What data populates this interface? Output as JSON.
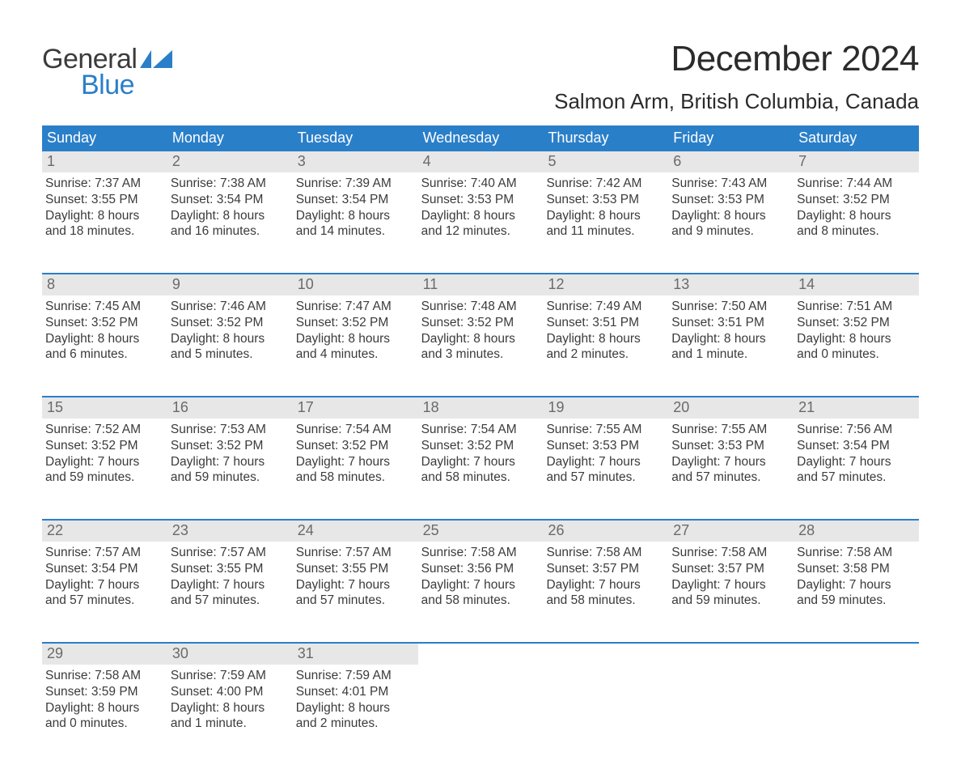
{
  "brand": {
    "word1": "General",
    "word2": "Blue",
    "flag_color": "#2a7fc9"
  },
  "header": {
    "month_title": "December 2024",
    "location": "Salmon Arm, British Columbia, Canada"
  },
  "colors": {
    "header_bg": "#2a7fc9",
    "header_text": "#ffffff",
    "daynum_bg": "#e7e7e7",
    "daynum_text": "#6a6a6a",
    "body_text": "#3b3b3b",
    "rule": "#2a7fc9",
    "page_bg": "#ffffff"
  },
  "day_headers": [
    "Sunday",
    "Monday",
    "Tuesday",
    "Wednesday",
    "Thursday",
    "Friday",
    "Saturday"
  ],
  "weeks": [
    [
      {
        "n": "1",
        "sunrise": "Sunrise: 7:37 AM",
        "sunset": "Sunset: 3:55 PM",
        "d1": "Daylight: 8 hours",
        "d2": "and 18 minutes."
      },
      {
        "n": "2",
        "sunrise": "Sunrise: 7:38 AM",
        "sunset": "Sunset: 3:54 PM",
        "d1": "Daylight: 8 hours",
        "d2": "and 16 minutes."
      },
      {
        "n": "3",
        "sunrise": "Sunrise: 7:39 AM",
        "sunset": "Sunset: 3:54 PM",
        "d1": "Daylight: 8 hours",
        "d2": "and 14 minutes."
      },
      {
        "n": "4",
        "sunrise": "Sunrise: 7:40 AM",
        "sunset": "Sunset: 3:53 PM",
        "d1": "Daylight: 8 hours",
        "d2": "and 12 minutes."
      },
      {
        "n": "5",
        "sunrise": "Sunrise: 7:42 AM",
        "sunset": "Sunset: 3:53 PM",
        "d1": "Daylight: 8 hours",
        "d2": "and 11 minutes."
      },
      {
        "n": "6",
        "sunrise": "Sunrise: 7:43 AM",
        "sunset": "Sunset: 3:53 PM",
        "d1": "Daylight: 8 hours",
        "d2": "and 9 minutes."
      },
      {
        "n": "7",
        "sunrise": "Sunrise: 7:44 AM",
        "sunset": "Sunset: 3:52 PM",
        "d1": "Daylight: 8 hours",
        "d2": "and 8 minutes."
      }
    ],
    [
      {
        "n": "8",
        "sunrise": "Sunrise: 7:45 AM",
        "sunset": "Sunset: 3:52 PM",
        "d1": "Daylight: 8 hours",
        "d2": "and 6 minutes."
      },
      {
        "n": "9",
        "sunrise": "Sunrise: 7:46 AM",
        "sunset": "Sunset: 3:52 PM",
        "d1": "Daylight: 8 hours",
        "d2": "and 5 minutes."
      },
      {
        "n": "10",
        "sunrise": "Sunrise: 7:47 AM",
        "sunset": "Sunset: 3:52 PM",
        "d1": "Daylight: 8 hours",
        "d2": "and 4 minutes."
      },
      {
        "n": "11",
        "sunrise": "Sunrise: 7:48 AM",
        "sunset": "Sunset: 3:52 PM",
        "d1": "Daylight: 8 hours",
        "d2": "and 3 minutes."
      },
      {
        "n": "12",
        "sunrise": "Sunrise: 7:49 AM",
        "sunset": "Sunset: 3:51 PM",
        "d1": "Daylight: 8 hours",
        "d2": "and 2 minutes."
      },
      {
        "n": "13",
        "sunrise": "Sunrise: 7:50 AM",
        "sunset": "Sunset: 3:51 PM",
        "d1": "Daylight: 8 hours",
        "d2": "and 1 minute."
      },
      {
        "n": "14",
        "sunrise": "Sunrise: 7:51 AM",
        "sunset": "Sunset: 3:52 PM",
        "d1": "Daylight: 8 hours",
        "d2": "and 0 minutes."
      }
    ],
    [
      {
        "n": "15",
        "sunrise": "Sunrise: 7:52 AM",
        "sunset": "Sunset: 3:52 PM",
        "d1": "Daylight: 7 hours",
        "d2": "and 59 minutes."
      },
      {
        "n": "16",
        "sunrise": "Sunrise: 7:53 AM",
        "sunset": "Sunset: 3:52 PM",
        "d1": "Daylight: 7 hours",
        "d2": "and 59 minutes."
      },
      {
        "n": "17",
        "sunrise": "Sunrise: 7:54 AM",
        "sunset": "Sunset: 3:52 PM",
        "d1": "Daylight: 7 hours",
        "d2": "and 58 minutes."
      },
      {
        "n": "18",
        "sunrise": "Sunrise: 7:54 AM",
        "sunset": "Sunset: 3:52 PM",
        "d1": "Daylight: 7 hours",
        "d2": "and 58 minutes."
      },
      {
        "n": "19",
        "sunrise": "Sunrise: 7:55 AM",
        "sunset": "Sunset: 3:53 PM",
        "d1": "Daylight: 7 hours",
        "d2": "and 57 minutes."
      },
      {
        "n": "20",
        "sunrise": "Sunrise: 7:55 AM",
        "sunset": "Sunset: 3:53 PM",
        "d1": "Daylight: 7 hours",
        "d2": "and 57 minutes."
      },
      {
        "n": "21",
        "sunrise": "Sunrise: 7:56 AM",
        "sunset": "Sunset: 3:54 PM",
        "d1": "Daylight: 7 hours",
        "d2": "and 57 minutes."
      }
    ],
    [
      {
        "n": "22",
        "sunrise": "Sunrise: 7:57 AM",
        "sunset": "Sunset: 3:54 PM",
        "d1": "Daylight: 7 hours",
        "d2": "and 57 minutes."
      },
      {
        "n": "23",
        "sunrise": "Sunrise: 7:57 AM",
        "sunset": "Sunset: 3:55 PM",
        "d1": "Daylight: 7 hours",
        "d2": "and 57 minutes."
      },
      {
        "n": "24",
        "sunrise": "Sunrise: 7:57 AM",
        "sunset": "Sunset: 3:55 PM",
        "d1": "Daylight: 7 hours",
        "d2": "and 57 minutes."
      },
      {
        "n": "25",
        "sunrise": "Sunrise: 7:58 AM",
        "sunset": "Sunset: 3:56 PM",
        "d1": "Daylight: 7 hours",
        "d2": "and 58 minutes."
      },
      {
        "n": "26",
        "sunrise": "Sunrise: 7:58 AM",
        "sunset": "Sunset: 3:57 PM",
        "d1": "Daylight: 7 hours",
        "d2": "and 58 minutes."
      },
      {
        "n": "27",
        "sunrise": "Sunrise: 7:58 AM",
        "sunset": "Sunset: 3:57 PM",
        "d1": "Daylight: 7 hours",
        "d2": "and 59 minutes."
      },
      {
        "n": "28",
        "sunrise": "Sunrise: 7:58 AM",
        "sunset": "Sunset: 3:58 PM",
        "d1": "Daylight: 7 hours",
        "d2": "and 59 minutes."
      }
    ],
    [
      {
        "n": "29",
        "sunrise": "Sunrise: 7:58 AM",
        "sunset": "Sunset: 3:59 PM",
        "d1": "Daylight: 8 hours",
        "d2": "and 0 minutes."
      },
      {
        "n": "30",
        "sunrise": "Sunrise: 7:59 AM",
        "sunset": "Sunset: 4:00 PM",
        "d1": "Daylight: 8 hours",
        "d2": "and 1 minute."
      },
      {
        "n": "31",
        "sunrise": "Sunrise: 7:59 AM",
        "sunset": "Sunset: 4:01 PM",
        "d1": "Daylight: 8 hours",
        "d2": "and 2 minutes."
      },
      {
        "empty": true
      },
      {
        "empty": true
      },
      {
        "empty": true
      },
      {
        "empty": true
      }
    ]
  ]
}
